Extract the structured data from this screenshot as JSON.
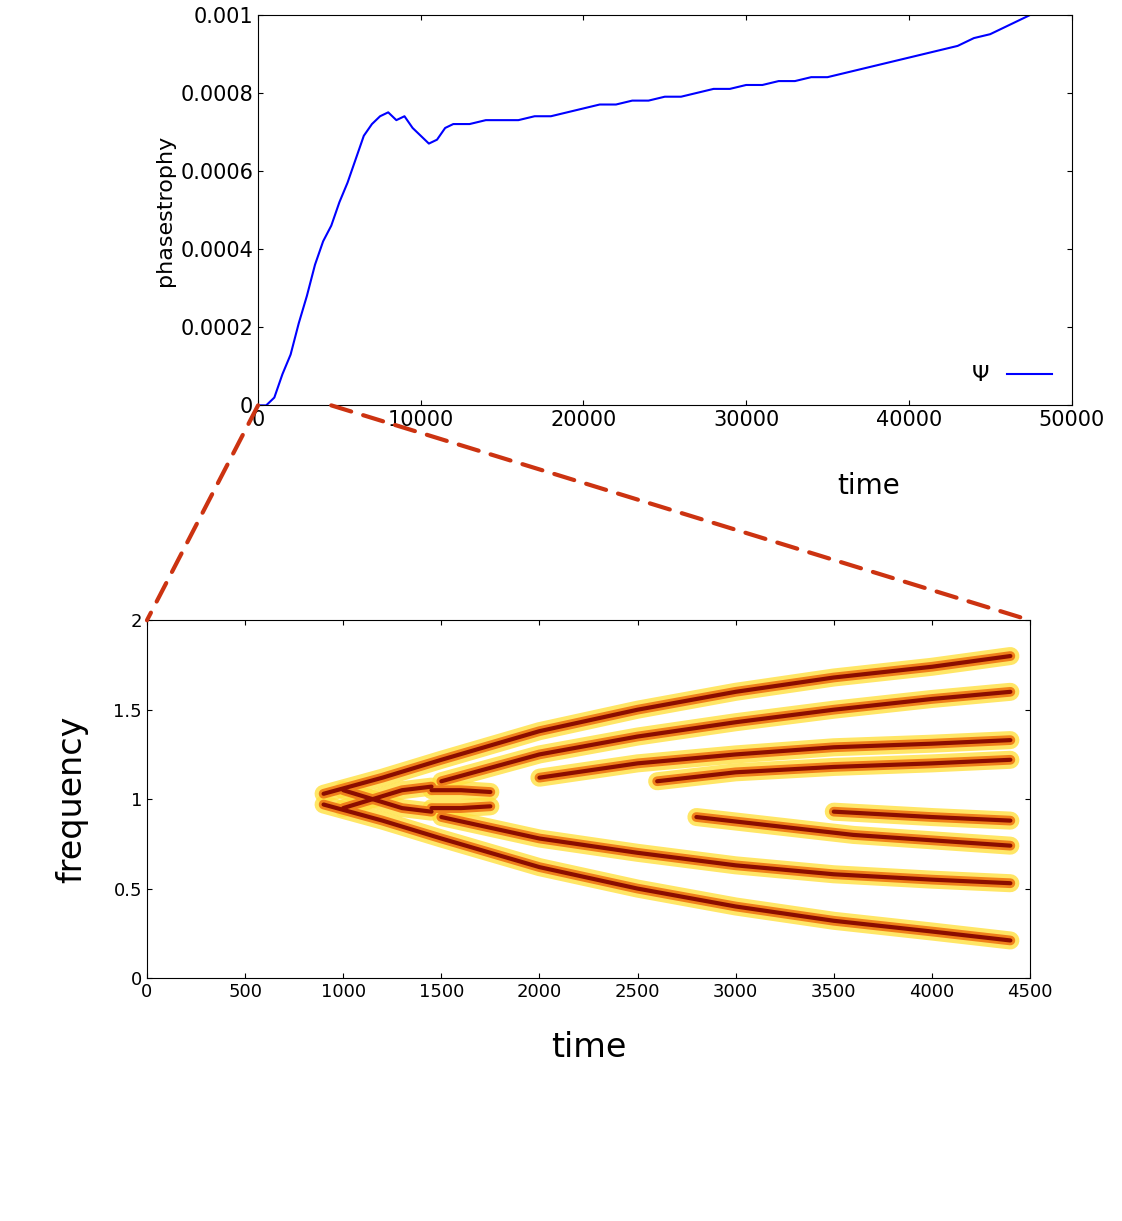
{
  "chart_data": [
    {
      "type": "line",
      "xlabel": "time",
      "ylabel": "phasestrophy",
      "xlim": [
        0,
        50000
      ],
      "xticks": [
        0,
        10000,
        20000,
        30000,
        40000,
        50000
      ],
      "ylim": [
        0,
        0.001
      ],
      "yticks": [
        0,
        0.0002,
        0.0004,
        0.0006,
        0.0008,
        0.001
      ],
      "legend": "lower right",
      "grid": false,
      "series": [
        {
          "name": "Ψ",
          "color": "#0000ff",
          "x": [
            0,
            500,
            1000,
            1500,
            2000,
            2500,
            3000,
            3500,
            4000,
            4500,
            5000,
            5500,
            6000,
            6500,
            7000,
            7500,
            8000,
            8500,
            9000,
            9500,
            10000,
            10500,
            11000,
            11500,
            12000,
            13000,
            14000,
            15000,
            16000,
            17000,
            18000,
            19000,
            20000,
            21000,
            22000,
            23000,
            24000,
            25000,
            26000,
            27000,
            28000,
            29000,
            30000,
            31000,
            32000,
            33000,
            34000,
            35000,
            36000,
            37000,
            38000,
            39000,
            40000,
            41000,
            42000,
            43000,
            44000,
            45000,
            46000,
            47000,
            47500
          ],
          "values": [
            0,
            0,
            2e-05,
            8e-05,
            0.00013,
            0.00021,
            0.00028,
            0.00036,
            0.00042,
            0.00046,
            0.00052,
            0.00057,
            0.00063,
            0.00069,
            0.00072,
            0.00074,
            0.00075,
            0.00073,
            0.00074,
            0.00071,
            0.00069,
            0.00067,
            0.00068,
            0.00071,
            0.00072,
            0.00072,
            0.00073,
            0.00073,
            0.00073,
            0.00074,
            0.00074,
            0.00075,
            0.00076,
            0.00077,
            0.00077,
            0.00078,
            0.00078,
            0.00079,
            0.00079,
            0.0008,
            0.00081,
            0.00081,
            0.00082,
            0.00082,
            0.00083,
            0.00083,
            0.00084,
            0.00084,
            0.00085,
            0.00086,
            0.00087,
            0.00088,
            0.00089,
            0.0009,
            0.00091,
            0.00092,
            0.00094,
            0.00095,
            0.00097,
            0.00099,
            0.001
          ]
        }
      ]
    },
    {
      "type": "line",
      "xlabel": "time",
      "ylabel": "frequency",
      "xlim": [
        0,
        4500
      ],
      "xticks": [
        0,
        500,
        1000,
        1500,
        2000,
        2500,
        3000,
        3500,
        4000,
        4500
      ],
      "ylim": [
        0,
        2
      ],
      "yticks": [
        0,
        0.5,
        1,
        1.5,
        2
      ],
      "grid": false,
      "series": [
        {
          "x": [
            900,
            1200,
            1500,
            2000,
            2500,
            3000,
            3500,
            4000,
            4400
          ],
          "values": [
            1.03,
            1.12,
            1.22,
            1.38,
            1.5,
            1.6,
            1.68,
            1.74,
            1.8
          ]
        },
        {
          "x": [
            900,
            1200,
            1500,
            2000,
            2500,
            3000,
            3500,
            4000,
            4400
          ],
          "values": [
            0.97,
            0.88,
            0.78,
            0.62,
            0.5,
            0.4,
            0.32,
            0.26,
            0.21
          ]
        },
        {
          "x": [
            1500,
            2000,
            2500,
            3000,
            3500,
            4000,
            4400
          ],
          "values": [
            1.1,
            1.25,
            1.35,
            1.43,
            1.5,
            1.56,
            1.6
          ]
        },
        {
          "x": [
            1500,
            2000,
            2500,
            3000,
            3500,
            4000,
            4400
          ],
          "values": [
            0.9,
            0.78,
            0.7,
            0.63,
            0.58,
            0.55,
            0.53
          ]
        },
        {
          "x": [
            2000,
            2500,
            3000,
            3500,
            4000,
            4400
          ],
          "values": [
            1.12,
            1.2,
            1.25,
            1.29,
            1.31,
            1.33
          ]
        },
        {
          "x": [
            2600,
            3000,
            3500,
            4000,
            4400
          ],
          "values": [
            1.1,
            1.15,
            1.18,
            1.2,
            1.22
          ]
        },
        {
          "x": [
            2800,
            3200,
            3600,
            4000,
            4400
          ],
          "values": [
            0.9,
            0.85,
            0.8,
            0.77,
            0.74
          ]
        },
        {
          "x": [
            3500,
            4000,
            4400
          ],
          "values": [
            0.93,
            0.9,
            0.88
          ]
        },
        {
          "x": [
            1000,
            1150,
            1300,
            1450
          ],
          "values": [
            1.05,
            1.0,
            0.95,
            0.93
          ]
        },
        {
          "x": [
            1000,
            1150,
            1300,
            1450
          ],
          "values": [
            0.95,
            1.0,
            1.05,
            1.07
          ]
        },
        {
          "x": [
            1450,
            1600,
            1750
          ],
          "values": [
            1.05,
            1.05,
            1.04
          ]
        },
        {
          "x": [
            1450,
            1600,
            1750
          ],
          "values": [
            0.95,
            0.95,
            0.96
          ]
        }
      ]
    }
  ]
}
